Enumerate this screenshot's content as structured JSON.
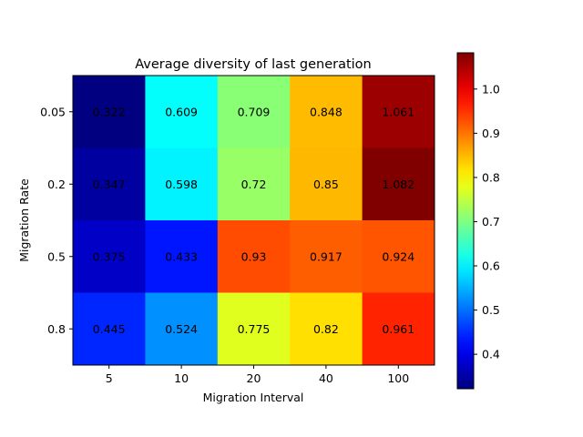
{
  "chart_data": {
    "type": "heatmap",
    "title": "Average diversity of last generation",
    "xlabel": "Migration Interval",
    "ylabel": "Migration Rate",
    "x_categories": [
      "5",
      "10",
      "20",
      "40",
      "100"
    ],
    "y_categories": [
      "0.05",
      "0.2",
      "0.5",
      "0.8"
    ],
    "values": [
      [
        0.322,
        0.609,
        0.709,
        0.848,
        1.061
      ],
      [
        0.347,
        0.598,
        0.72,
        0.85,
        1.082
      ],
      [
        0.375,
        0.433,
        0.93,
        0.917,
        0.924
      ],
      [
        0.445,
        0.524,
        0.775,
        0.82,
        0.961
      ]
    ],
    "colormap": "jet",
    "vmin": 0.322,
    "vmax": 1.082,
    "colorbar_ticks": [
      0.4,
      0.5,
      0.6,
      0.7,
      0.8,
      0.9,
      1.0
    ],
    "colorbar_tick_labels": [
      "0.4",
      "0.5",
      "0.6",
      "0.7",
      "0.8",
      "0.9",
      "1.0"
    ]
  }
}
